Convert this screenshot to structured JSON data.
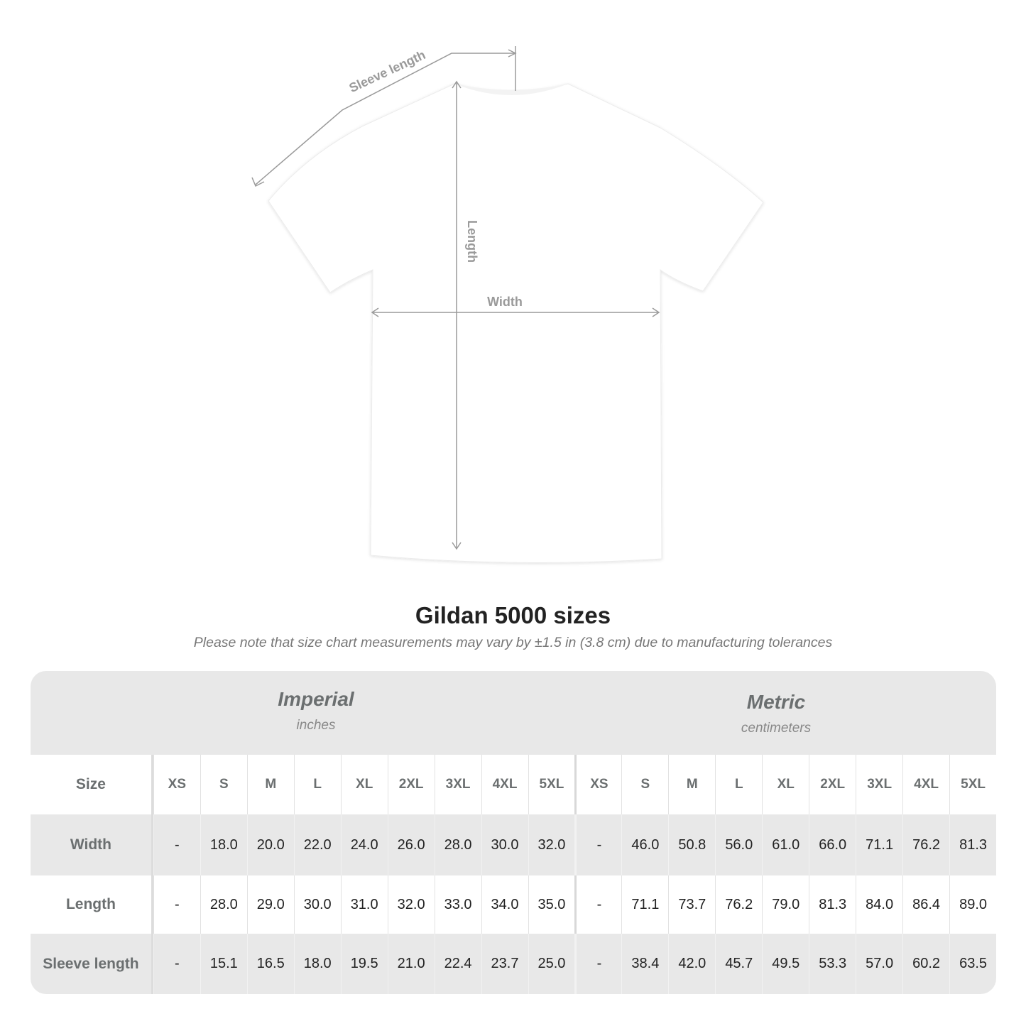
{
  "diagram": {
    "labels": {
      "sleeve": "Sleeve length",
      "length": "Length",
      "width": "Width"
    },
    "line_color": "#9a9a9a"
  },
  "title": "Gildan 5000 sizes",
  "subtitle": "Please note that size chart measurements may vary by ±1.5 in (3.8 cm) due to manufacturing tolerances",
  "table": {
    "imperial": {
      "name": "Imperial",
      "unit": "inches"
    },
    "metric": {
      "name": "Metric",
      "unit": "centimeters"
    },
    "size_label": "Size",
    "sizes": [
      "XS",
      "S",
      "M",
      "L",
      "XL",
      "2XL",
      "3XL",
      "4XL",
      "5XL"
    ],
    "rows": [
      {
        "label": "Width",
        "imperial": [
          "-",
          "18.0",
          "20.0",
          "22.0",
          "24.0",
          "26.0",
          "28.0",
          "30.0",
          "32.0"
        ],
        "metric": [
          "-",
          "46.0",
          "50.8",
          "56.0",
          "61.0",
          "66.0",
          "71.1",
          "76.2",
          "81.3"
        ]
      },
      {
        "label": "Length",
        "imperial": [
          "-",
          "28.0",
          "29.0",
          "30.0",
          "31.0",
          "32.0",
          "33.0",
          "34.0",
          "35.0"
        ],
        "metric": [
          "-",
          "71.1",
          "73.7",
          "76.2",
          "79.0",
          "81.3",
          "84.0",
          "86.4",
          "89.0"
        ]
      },
      {
        "label": "Sleeve length",
        "imperial": [
          "-",
          "15.1",
          "16.5",
          "18.0",
          "19.5",
          "21.0",
          "22.4",
          "23.7",
          "25.0"
        ],
        "metric": [
          "-",
          "38.4",
          "42.0",
          "45.7",
          "49.5",
          "53.3",
          "57.0",
          "60.2",
          "63.5"
        ]
      }
    ],
    "colors": {
      "band": "#e8e8e8",
      "label_text": "#6b6f70"
    }
  }
}
